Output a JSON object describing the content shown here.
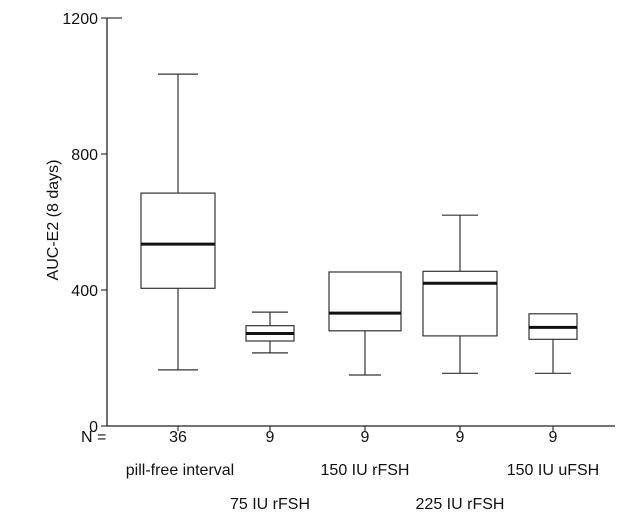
{
  "chart_data": {
    "type": "box",
    "ylabel": "AUC-E2 (8 days)",
    "ylim": [
      0,
      1200
    ],
    "yticks": [
      0,
      400,
      800,
      1200
    ],
    "n_prefix": "N =",
    "grid": false,
    "categories": [
      "pill-free interval",
      "75 IU rFSH",
      "150 IU rFSH",
      "225 IU rFSH",
      "150 IU uFSH"
    ],
    "n": [
      "36",
      "9",
      "9",
      "9",
      "9"
    ],
    "boxes": [
      {
        "min": 165,
        "q1": 405,
        "median": 535,
        "q3": 685,
        "max": 1035
      },
      {
        "min": 215,
        "q1": 250,
        "median": 272,
        "q3": 295,
        "max": 335
      },
      {
        "min": 150,
        "q1": 280,
        "median": 332,
        "q3": 453,
        "max": 453
      },
      {
        "min": 155,
        "q1": 265,
        "median": 420,
        "q3": 455,
        "max": 620
      },
      {
        "min": 155,
        "q1": 255,
        "median": 290,
        "q3": 330,
        "max": 330
      }
    ]
  }
}
